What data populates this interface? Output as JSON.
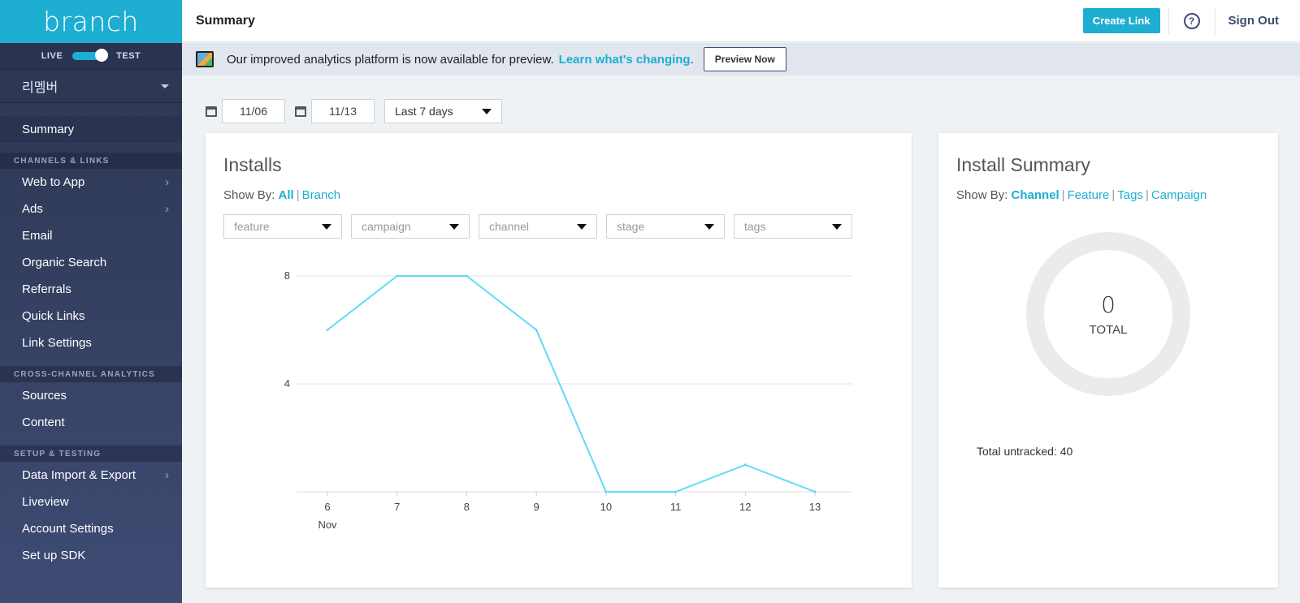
{
  "sidebar": {
    "brand": "branch",
    "env_live": "LIVE",
    "env_test": "TEST",
    "app_name": "리멤버",
    "summary": "Summary",
    "section_channels": "CHANNELS & LINKS",
    "channels": [
      "Web to App",
      "Ads",
      "Email",
      "Organic Search",
      "Referrals",
      "Quick Links",
      "Link Settings"
    ],
    "section_analytics": "CROSS-CHANNEL ANALYTICS",
    "analytics": [
      "Sources",
      "Content"
    ],
    "section_setup": "SETUP & TESTING",
    "setup": [
      "Data Import & Export",
      "Liveview",
      "Account Settings",
      "Set up SDK"
    ]
  },
  "header": {
    "title": "Summary",
    "create_link": "Create Link",
    "help": "?",
    "sign_out": "Sign Out"
  },
  "banner": {
    "text": "Our improved analytics platform is now available for preview.",
    "link": "Learn what's changing",
    "period": ".",
    "button": "Preview Now"
  },
  "filters": {
    "start_date": "11/06",
    "end_date": "11/13",
    "range": "Last 7 days"
  },
  "installs": {
    "title": "Installs",
    "show_by_label": "Show By:",
    "show_by_all": "All",
    "show_by_branch": "Branch",
    "selects": [
      "feature",
      "campaign",
      "channel",
      "stage",
      "tags"
    ]
  },
  "chart_data": {
    "type": "line",
    "x": [
      "6",
      "7",
      "8",
      "9",
      "10",
      "11",
      "12",
      "13"
    ],
    "x_sublabel": "Nov",
    "values": [
      6,
      8,
      8,
      6,
      0,
      0,
      1,
      0
    ],
    "ylim": [
      0,
      8
    ],
    "yticks": [
      "8",
      "4"
    ],
    "line_color": "#5ddcf5",
    "grid": true
  },
  "summary": {
    "title": "Install Summary",
    "show_by_label": "Show By:",
    "options": [
      "Channel",
      "Feature",
      "Tags",
      "Campaign"
    ],
    "total_value": "0",
    "total_label": "TOTAL",
    "untracked": "Total untracked: 40"
  }
}
